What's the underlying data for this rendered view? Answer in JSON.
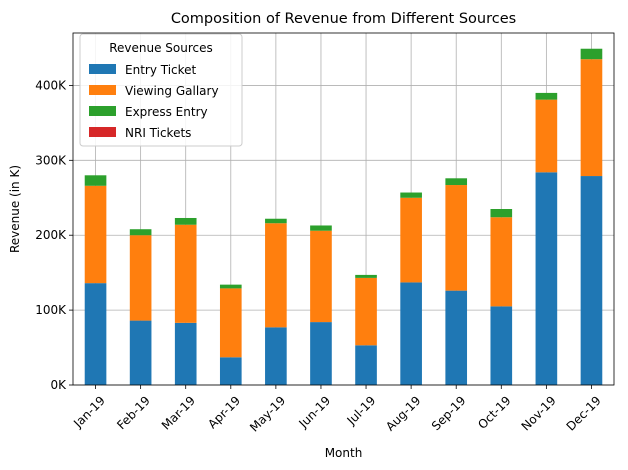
{
  "chart_data": {
    "type": "bar",
    "stacked": true,
    "title": "Composition of Revenue from Different Sources",
    "xlabel": "Month",
    "ylabel": "Revenue (in K)",
    "ylim": [
      0,
      470000
    ],
    "yticks": [
      0,
      100000,
      200000,
      300000,
      400000
    ],
    "ytick_labels": [
      "0K",
      "100K",
      "200K",
      "300K",
      "400K"
    ],
    "grid": true,
    "legend": {
      "title": "Revenue Sources",
      "placement": "top-left"
    },
    "categories": [
      "Jan-19",
      "Feb-19",
      "Mar-19",
      "Apr-19",
      "May-19",
      "Jun-19",
      "Jul-19",
      "Aug-19",
      "Sep-19",
      "Oct-19",
      "Nov-19",
      "Dec-19"
    ],
    "series": [
      {
        "name": "Entry Ticket",
        "color": "#1f77b4",
        "values": [
          136000,
          86000,
          83000,
          37000,
          77000,
          84000,
          53000,
          137000,
          126000,
          105000,
          284000,
          279000
        ]
      },
      {
        "name": "Viewing Gallary",
        "color": "#ff7f0e",
        "values": [
          130000,
          114000,
          131000,
          92000,
          139000,
          122000,
          90000,
          113000,
          141000,
          119000,
          97000,
          156000
        ]
      },
      {
        "name": "Express Entry",
        "color": "#2ca02c",
        "values": [
          14000,
          8000,
          9000,
          5000,
          6000,
          7000,
          4000,
          7000,
          9000,
          11000,
          9000,
          14000
        ]
      },
      {
        "name": "NRI Tickets",
        "color": "#d62728",
        "values": [
          0,
          0,
          0,
          0,
          0,
          0,
          0,
          0,
          0,
          0,
          0,
          0
        ]
      }
    ]
  }
}
